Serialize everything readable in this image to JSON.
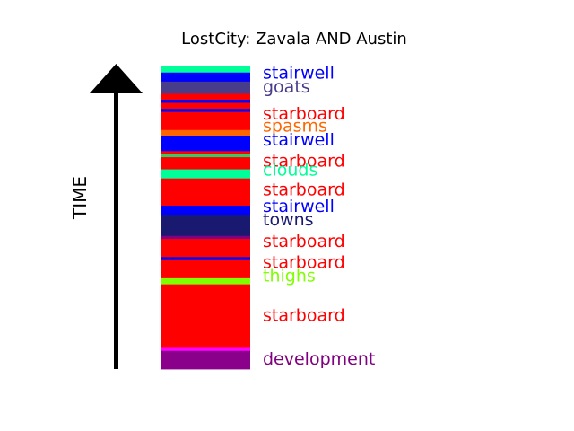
{
  "chart_data": {
    "type": "timeline-stack",
    "title": "LostCity: Zavala AND Austin",
    "axis_label": "TIME",
    "axis_direction": "up",
    "segments": [
      {
        "label": "stairwell",
        "color": "#00ff99",
        "share": 0.02
      },
      {
        "label": "stairwell",
        "color": "#0000ff",
        "share": 0.03
      },
      {
        "label": "goats",
        "color": "#483d8b",
        "share": 0.04
      },
      {
        "label": "starboard",
        "color": "#ff0000",
        "share": 0.02
      },
      {
        "label": "stairwell",
        "color": "#0000ff",
        "share": 0.01
      },
      {
        "label": "starboard",
        "color": "#ff0000",
        "share": 0.02
      },
      {
        "label": "stairwell",
        "color": "#0000ff",
        "share": 0.01
      },
      {
        "label": "starboard",
        "color": "#ff0000",
        "share": 0.06
      },
      {
        "label": "spasms",
        "color": "#ff6600",
        "share": 0.02
      },
      {
        "label": "stairwell",
        "color": "#0000ff",
        "share": 0.05
      },
      {
        "label": "starboard",
        "color": "#ff0000",
        "share": 0.01
      },
      {
        "label": "clouds",
        "color": "#33cc66",
        "share": 0.01
      },
      {
        "label": "starboard",
        "color": "#ff0000",
        "share": 0.04
      },
      {
        "label": "clouds",
        "color": "#00ff99",
        "share": 0.03
      },
      {
        "label": "starboard",
        "color": "#ff0000",
        "share": 0.09
      },
      {
        "label": "stairwell",
        "color": "#0000ff",
        "share": 0.03
      },
      {
        "label": "towns",
        "color": "#191970",
        "share": 0.07
      },
      {
        "label": "development",
        "color": "#800080",
        "share": 0.01
      },
      {
        "label": "starboard",
        "color": "#ff0000",
        "share": 0.06
      },
      {
        "label": "stairwell",
        "color": "#0000ff",
        "share": 0.01
      },
      {
        "label": "starboard",
        "color": "#ff0000",
        "share": 0.06
      },
      {
        "label": "thighs",
        "color": "#7fff00",
        "share": 0.02
      },
      {
        "label": "starboard",
        "color": "#ff0000",
        "share": 0.21
      },
      {
        "label": "development",
        "color": "#ff00ff",
        "share": 0.01
      },
      {
        "label": "development",
        "color": "#8b008b",
        "share": 0.06
      }
    ],
    "labels": [
      {
        "text": "stairwell",
        "color": "#0000ff",
        "pos": 0.02
      },
      {
        "text": "goats",
        "color": "#483d8b",
        "pos": 0.065
      },
      {
        "text": "starboard",
        "color": "#ff0000",
        "pos": 0.155
      },
      {
        "text": "spasms",
        "color": "#ff6600",
        "pos": 0.195
      },
      {
        "text": "stairwell",
        "color": "#0000ff",
        "pos": 0.24
      },
      {
        "text": "starboard",
        "color": "#ff0000",
        "pos": 0.31
      },
      {
        "text": "clouds",
        "color": "#00ff99",
        "pos": 0.34
      },
      {
        "text": "starboard",
        "color": "#ff0000",
        "pos": 0.405
      },
      {
        "text": "stairwell",
        "color": "#0000ff",
        "pos": 0.46
      },
      {
        "text": "towns",
        "color": "#191970",
        "pos": 0.505
      },
      {
        "text": "starboard",
        "color": "#ff0000",
        "pos": 0.575
      },
      {
        "text": "starboard",
        "color": "#ff0000",
        "pos": 0.645
      },
      {
        "text": "thighs",
        "color": "#7fff00",
        "pos": 0.69
      },
      {
        "text": "starboard",
        "color": "#ff0000",
        "pos": 0.82
      },
      {
        "text": "development",
        "color": "#800080",
        "pos": 0.965
      }
    ]
  }
}
